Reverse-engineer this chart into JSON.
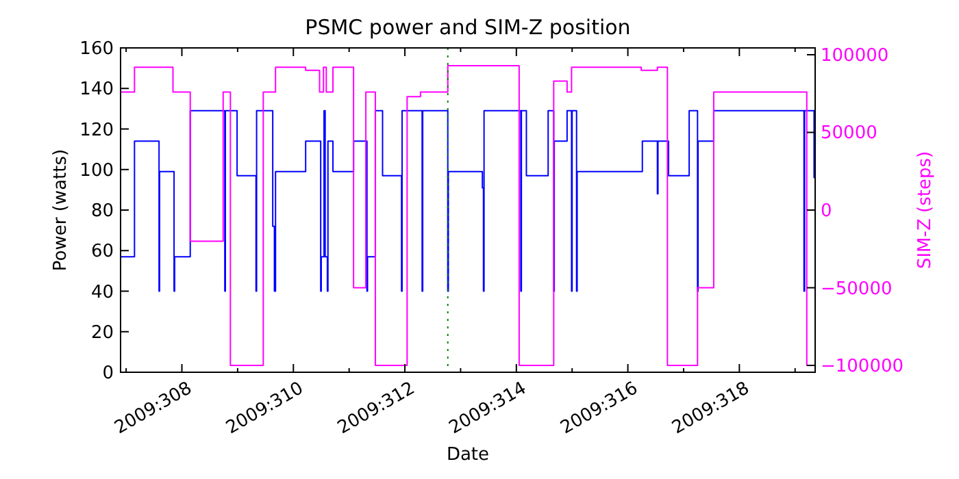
{
  "chart_data": {
    "type": "step",
    "title": "PSMC power and SIM-Z position",
    "xlabel": "Date",
    "ylabel": "Power (watts)",
    "y2label": "SIM-Z (steps)",
    "xlim": [
      "2009-11-02T21:36",
      "2009-11-15T08:38"
    ],
    "xticks": [
      {
        "value": "2009-11-03",
        "label": null
      },
      {
        "value": "2009-11-04",
        "label": "2009:308"
      },
      {
        "value": "2009-11-05",
        "label": null
      },
      {
        "value": "2009-11-06",
        "label": "2009:310"
      },
      {
        "value": "2009-11-07",
        "label": null
      },
      {
        "value": "2009-11-08",
        "label": "2009:312"
      },
      {
        "value": "2009-11-09",
        "label": null
      },
      {
        "value": "2009-11-10",
        "label": "2009:314"
      },
      {
        "value": "2009-11-11",
        "label": null
      },
      {
        "value": "2009-11-12",
        "label": "2009:316"
      },
      {
        "value": "2009-11-13",
        "label": null
      },
      {
        "value": "2009-11-14",
        "label": "2009:318"
      },
      {
        "value": "2009-11-15",
        "label": null
      }
    ],
    "ylim": [
      0,
      160
    ],
    "yticks": [
      0,
      20,
      40,
      60,
      80,
      100,
      120,
      140,
      160
    ],
    "y2lim": [
      -104400,
      104400
    ],
    "y2ticks": [
      {
        "value": -100000,
        "label": "−100000"
      },
      {
        "value": -50000,
        "label": "−50000"
      },
      0,
      50000,
      100000
    ],
    "line_style": "solid",
    "ref_lines": [
      {
        "axis": "x",
        "value": "2009-11-08T18:29",
        "color": "#008000",
        "line_style": "dotted"
      }
    ],
    "series": [
      {
        "color": "#0000ff",
        "x": [
          "2009-11-02T21:36",
          "2009-11-03T03:36",
          "2009-11-03T14:10",
          "2009-11-03T14:24",
          "2009-11-03T20:38",
          "2009-11-03T20:53",
          "2009-11-04T03:36",
          "2009-11-04T18:29",
          "2009-11-04T18:43",
          "2009-11-04T23:46",
          "2009-11-05T07:55",
          "2009-11-05T08:10",
          "2009-11-05T15:07",
          "2009-11-05T15:50",
          "2009-11-05T16:19",
          "2009-11-06T05:17",
          "2009-11-06T11:46",
          "2009-11-06T12:00",
          "2009-11-06T13:12",
          "2009-11-06T13:41",
          "2009-11-06T14:38",
          "2009-11-06T14:53",
          "2009-11-06T17:02",
          "2009-11-07T01:55",
          "2009-11-07T07:41",
          "2009-11-07T07:55",
          "2009-11-07T11:17",
          "2009-11-07T14:24",
          "2009-11-07T22:34",
          "2009-11-07T22:48",
          "2009-11-08T07:26",
          "2009-11-08T07:41",
          "2009-11-08T18:29",
          "2009-11-08T18:43",
          "2009-11-09T09:22",
          "2009-11-09T09:50",
          "2009-11-09T10:05",
          "2009-11-10T01:55",
          "2009-11-10T02:10",
          "2009-11-10T04:19",
          "2009-11-10T13:41",
          "2009-11-10T16:05",
          "2009-11-10T16:19",
          "2009-11-10T21:50",
          "2009-11-10T23:46",
          "2009-11-11T00:00",
          "2009-11-11T01:55",
          "2009-11-11T02:10",
          "2009-11-12T06:14",
          "2009-11-12T12:43",
          "2009-11-12T12:58",
          "2009-11-12T17:31",
          "2009-11-13T02:24",
          "2009-11-13T06:00",
          "2009-11-13T06:14",
          "2009-11-13T12:58",
          "2009-11-15T03:50",
          "2009-11-15T04:05",
          "2009-11-15T08:10",
          "2009-11-15T08:38"
        ],
        "values": [
          57,
          114,
          40,
          99,
          40,
          57,
          129,
          40,
          129,
          97,
          40,
          129,
          72,
          40,
          99,
          114,
          40,
          57,
          129,
          57,
          40,
          114,
          99,
          114,
          40,
          57,
          129,
          97,
          40,
          129,
          40,
          129,
          40,
          99,
          91,
          40,
          129,
          40,
          129,
          97,
          129,
          40,
          114,
          129,
          40,
          129,
          40,
          99,
          114,
          88,
          114,
          97,
          129,
          40,
          114,
          129,
          40,
          129,
          96,
          96
        ]
      },
      {
        "color": "#ff00ff",
        "axis": "y2",
        "x": [
          "2009-11-02T21:36",
          "2009-11-03T03:36",
          "2009-11-03T20:10",
          "2009-11-04T03:36",
          "2009-11-04T17:46",
          "2009-11-04T20:53",
          "2009-11-05T11:02",
          "2009-11-05T16:19",
          "2009-11-06T05:17",
          "2009-11-06T11:17",
          "2009-11-06T12:58",
          "2009-11-06T14:10",
          "2009-11-06T17:02",
          "2009-11-07T01:55",
          "2009-11-07T07:12",
          "2009-11-07T11:17",
          "2009-11-08T00:58",
          "2009-11-08T06:43",
          "2009-11-08T18:29",
          "2009-11-10T01:12",
          "2009-11-10T16:05",
          "2009-11-10T21:50",
          "2009-11-10T23:46",
          "2009-11-12T05:46",
          "2009-11-12T12:43",
          "2009-11-12T17:02",
          "2009-11-13T06:00",
          "2009-11-13T12:58",
          "2009-11-15T05:02",
          "2009-11-15T08:38"
        ],
        "values": [
          76000,
          92000,
          76000,
          -20000,
          76000,
          -100000,
          76000,
          92000,
          90000,
          76000,
          92000,
          76000,
          92000,
          -50000,
          76000,
          -100000,
          73000,
          76000,
          93000,
          -100000,
          83000,
          76000,
          92000,
          90000,
          92000,
          -100000,
          -50000,
          76000,
          -100000,
          -100000
        ]
      }
    ]
  }
}
